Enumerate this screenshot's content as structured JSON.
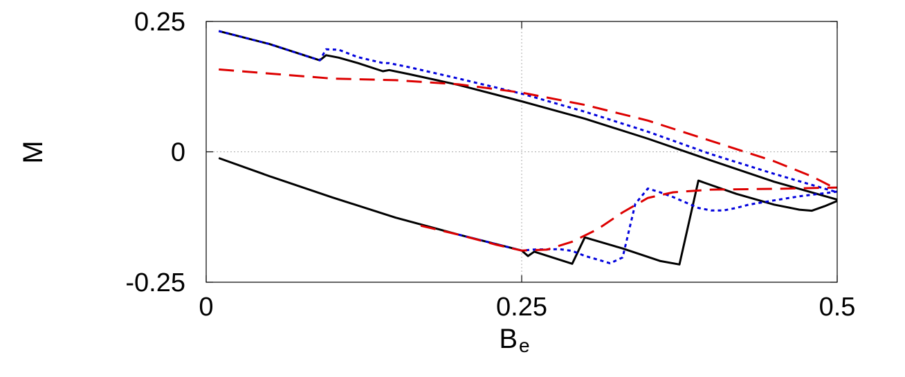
{
  "chart_data": {
    "type": "line",
    "title": "",
    "xlabel": "B",
    "xlabel_subscript": "e",
    "ylabel": "M",
    "xlim": [
      0,
      0.5
    ],
    "ylim": [
      -0.25,
      0.25
    ],
    "xticks": [
      0,
      0.25,
      0.5
    ],
    "xtick_labels": [
      "0",
      "0.25",
      "0.5"
    ],
    "yticks": [
      -0.25,
      0,
      0.25
    ],
    "ytick_labels": [
      "-0.25",
      "0",
      "0.25"
    ],
    "grid": "dotted at x=0.25 and y=0",
    "legend": "none",
    "series": [
      {
        "color": "#000000",
        "dash": "solid",
        "x": [
          0.01,
          0.05,
          0.09,
          0.095,
          0.105,
          0.12,
          0.14,
          0.145,
          0.16,
          0.2,
          0.25,
          0.3,
          0.35,
          0.4,
          0.45,
          0.5
        ],
        "y": [
          0.2316,
          0.2068,
          0.1754,
          0.1853,
          0.1806,
          0.1703,
          0.1545,
          0.1568,
          0.1493,
          0.1283,
          0.0968,
          0.0635,
          0.0252,
          -0.0165,
          -0.0573,
          -0.0916
        ]
      },
      {
        "color": "#000000",
        "dash": "solid",
        "x": [
          0.01,
          0.05,
          0.1,
          0.15,
          0.2,
          0.25,
          0.255,
          0.26,
          0.29,
          0.3,
          0.33,
          0.36,
          0.375,
          0.39,
          0.42,
          0.45,
          0.47,
          0.48,
          0.49,
          0.5
        ],
        "y": [
          -0.0119,
          -0.0466,
          -0.0874,
          -0.1261,
          -0.1587,
          -0.1892,
          -0.1997,
          -0.1914,
          -0.2146,
          -0.1641,
          -0.1853,
          -0.2094,
          -0.2159,
          -0.0552,
          -0.0805,
          -0.1012,
          -0.1109,
          -0.1128,
          -0.1042,
          -0.0942
        ]
      },
      {
        "color": "#0000dd",
        "dash": "dotted",
        "x": [
          0.01,
          0.05,
          0.09,
          0.095,
          0.105,
          0.12,
          0.14,
          0.145,
          0.16,
          0.2,
          0.25,
          0.3,
          0.35,
          0.4,
          0.45,
          0.5
        ],
        "y": [
          0.2316,
          0.2068,
          0.1754,
          0.1966,
          0.1957,
          0.1817,
          0.1703,
          0.17,
          0.1627,
          0.1405,
          0.1115,
          0.0771,
          0.0386,
          -0.0045,
          -0.0422,
          -0.0776
        ]
      },
      {
        "color": "#0000dd",
        "dash": "dotted",
        "x": [
          0.2,
          0.25,
          0.26,
          0.28,
          0.29,
          0.3,
          0.31,
          0.32,
          0.33,
          0.34,
          0.35,
          0.36,
          0.37,
          0.38,
          0.39,
          0.4,
          0.41,
          0.42,
          0.43,
          0.45,
          0.47,
          0.5
        ],
        "y": [
          -0.1587,
          -0.1892,
          -0.1873,
          -0.1866,
          -0.1899,
          -0.1995,
          -0.2063,
          -0.2137,
          -0.2025,
          -0.0998,
          -0.0703,
          -0.0778,
          -0.0867,
          -0.0971,
          -0.1075,
          -0.1123,
          -0.1123,
          -0.1075,
          -0.1012,
          -0.0931,
          -0.0853,
          -0.0763
        ]
      },
      {
        "color": "#dd0000",
        "dash": "dashed",
        "x": [
          0.01,
          0.1,
          0.15,
          0.2,
          0.25,
          0.3,
          0.35,
          0.4,
          0.45,
          0.48,
          0.5
        ],
        "y": [
          0.1579,
          0.1405,
          0.1374,
          0.1294,
          0.1135,
          0.09,
          0.0599,
          0.021,
          -0.018,
          -0.0471,
          -0.0719
        ]
      },
      {
        "color": "#dd0000",
        "dash": "dashed",
        "x": [
          0.17,
          0.2,
          0.23,
          0.25,
          0.27,
          0.29,
          0.31,
          0.33,
          0.35,
          0.37,
          0.4,
          0.45,
          0.5
        ],
        "y": [
          -0.1417,
          -0.1587,
          -0.1783,
          -0.1892,
          -0.1875,
          -0.1723,
          -0.1485,
          -0.1161,
          -0.0883,
          -0.0776,
          -0.0724,
          -0.0709,
          -0.0684
        ]
      }
    ]
  }
}
